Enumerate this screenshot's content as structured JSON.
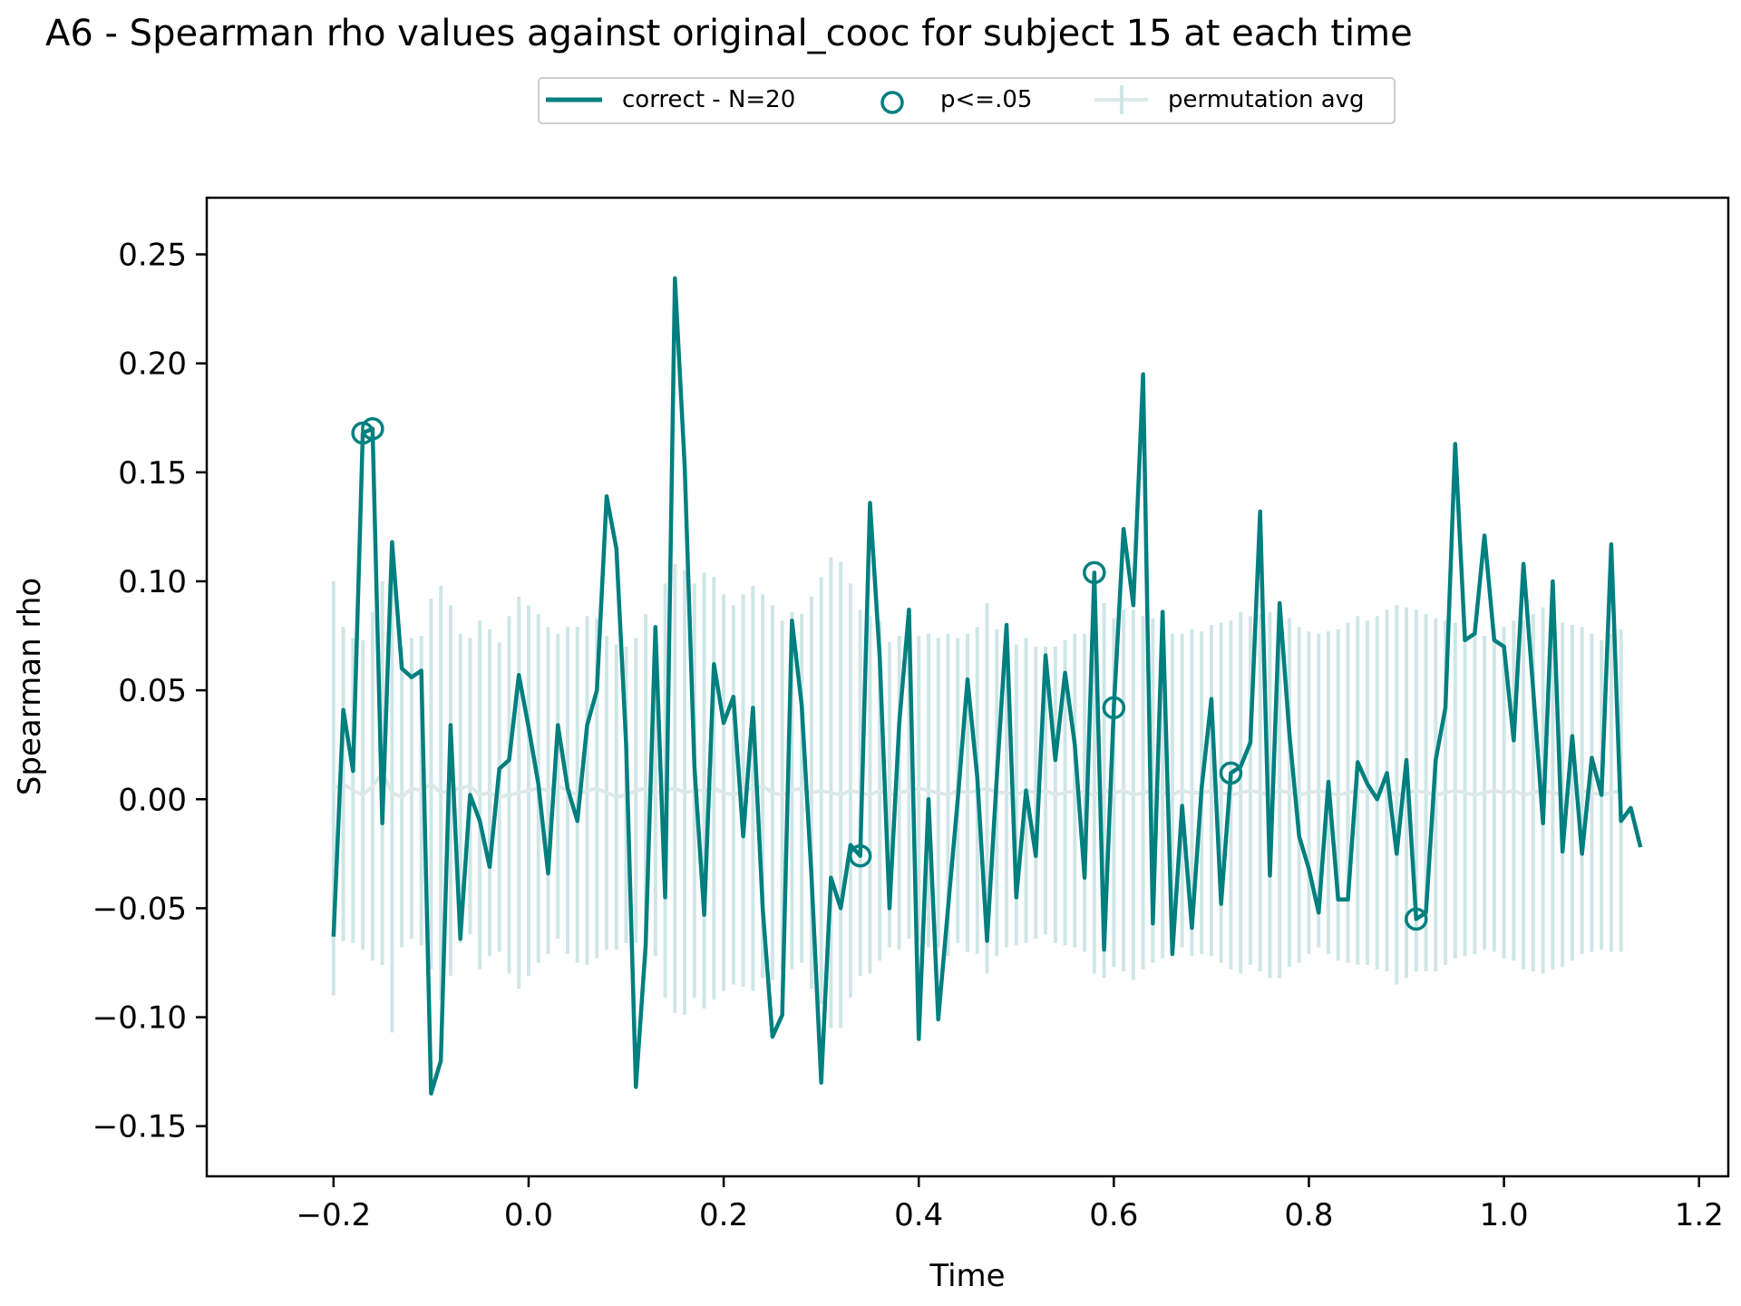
{
  "chart_data": {
    "type": "line",
    "title": "A6 - Spearman rho values against original_cooc for subject 15 at each time",
    "xlabel": "Time",
    "ylabel": "Spearman rho",
    "xlim": [
      -0.33,
      1.23
    ],
    "ylim": [
      -0.173,
      0.276
    ],
    "x_ticks": [
      -0.2,
      0.0,
      0.2,
      0.4,
      0.6,
      0.8,
      1.0,
      1.2
    ],
    "x_tick_labels": [
      "−0.2",
      "0.0",
      "0.2",
      "0.4",
      "0.6",
      "0.8",
      "1.0",
      "1.2"
    ],
    "y_ticks": [
      0.25,
      0.2,
      0.15,
      0.1,
      0.05,
      0.0,
      -0.05,
      -0.1,
      -0.15
    ],
    "y_tick_labels": [
      "0.25",
      "0.20",
      "0.15",
      "0.10",
      "0.05",
      "0.00",
      "−0.05",
      "−0.10",
      "−0.15"
    ],
    "grid": false,
    "legend": {
      "placement": "top-center",
      "entries": [
        {
          "label": "correct - N=20",
          "kind": "line"
        },
        {
          "label": "p<=.05",
          "kind": "marker"
        },
        {
          "label": "permutation avg",
          "kind": "errorbar"
        }
      ]
    },
    "colors": {
      "series": "#007f7f",
      "permutation": "#cfe6e6",
      "permutation_mean": "#dde9e9"
    },
    "series": [
      {
        "name": "correct - N=20",
        "x_start": -0.2,
        "x_step": 0.01,
        "values": [
          -0.063,
          0.041,
          0.013,
          0.168,
          0.17,
          -0.011,
          0.118,
          0.06,
          0.056,
          0.059,
          -0.135,
          -0.12,
          0.034,
          -0.064,
          0.002,
          -0.01,
          -0.031,
          0.014,
          0.018,
          0.057,
          0.033,
          0.007,
          -0.034,
          0.034,
          0.005,
          -0.01,
          0.034,
          0.05,
          0.139,
          0.115,
          0.025,
          -0.132,
          -0.067,
          0.079,
          -0.045,
          0.239,
          0.153,
          0.015,
          -0.053,
          0.062,
          0.035,
          0.047,
          -0.017,
          0.042,
          -0.05,
          -0.109,
          -0.099,
          0.082,
          0.043,
          -0.035,
          -0.13,
          -0.036,
          -0.05,
          -0.021,
          -0.026,
          0.136,
          0.065,
          -0.05,
          0.035,
          0.087,
          -0.11,
          0.0,
          -0.101,
          -0.05,
          0.0,
          0.055,
          0.01,
          -0.065,
          0.01,
          0.08,
          -0.045,
          0.004,
          -0.026,
          0.066,
          0.018,
          0.058,
          0.025,
          -0.036,
          0.104,
          -0.069,
          0.042,
          0.124,
          0.089,
          0.195,
          -0.057,
          0.086,
          -0.071,
          -0.003,
          -0.059,
          0.005,
          0.046,
          -0.048,
          0.012,
          0.015,
          0.026,
          0.132,
          -0.035,
          0.09,
          0.03,
          -0.017,
          -0.032,
          -0.052,
          0.008,
          -0.046,
          -0.046,
          0.017,
          0.007,
          0.0,
          0.012,
          -0.025,
          0.018,
          -0.055,
          -0.052,
          0.018,
          0.042,
          0.163,
          0.073,
          0.076,
          0.121,
          0.073,
          0.07,
          0.027,
          0.108,
          0.05,
          -0.011,
          0.1,
          -0.024,
          0.029,
          -0.025,
          0.019,
          0.002,
          0.117,
          -0.01,
          -0.004,
          -0.022
        ]
      }
    ],
    "significant_x": [
      -0.17,
      -0.16,
      0.34,
      0.58,
      0.6,
      0.72,
      0.91
    ],
    "permutation": {
      "name": "permutation avg",
      "x_start": -0.2,
      "x_step": 0.01,
      "mean": [
        0.005,
        0.007,
        0.004,
        0.002,
        0.006,
        0.012,
        0.003,
        0.001,
        0.005,
        0.004,
        0.007,
        0.003,
        0.004,
        0.005,
        0.006,
        0.002,
        0.003,
        0.001,
        0.002,
        0.003,
        0.004,
        0.005,
        0.004,
        0.006,
        0.004,
        0.002,
        0.004,
        0.005,
        0.003,
        0.001,
        0.002,
        0.004,
        0.005,
        0.003,
        0.004,
        0.005,
        0.003,
        0.004,
        0.004,
        0.005,
        0.003,
        0.002,
        0.004,
        0.005,
        0.006,
        0.003,
        0.002,
        0.004,
        0.005,
        0.003,
        0.004,
        0.003,
        0.002,
        0.004,
        0.003,
        0.002,
        0.004,
        0.002,
        0.003,
        0.004,
        0.005,
        0.004,
        0.003,
        0.002,
        0.004,
        0.003,
        0.004,
        0.005,
        0.003,
        0.003,
        0.002,
        0.004,
        0.003,
        0.004,
        0.002,
        0.003,
        0.004,
        0.003,
        0.002,
        0.004,
        0.003,
        0.004,
        0.002,
        0.003,
        0.004,
        0.003,
        0.002,
        0.004,
        0.003,
        0.003,
        0.004,
        0.003,
        0.002,
        0.003,
        0.004,
        0.003,
        0.002,
        0.004,
        0.003,
        0.002,
        0.003,
        0.004,
        0.003,
        0.002,
        0.003,
        0.004,
        0.003,
        0.003,
        0.004,
        0.002,
        0.003,
        0.004,
        0.003,
        0.002,
        0.003,
        0.004,
        0.003,
        0.002,
        0.003,
        0.004,
        0.003,
        0.004,
        0.002,
        0.003,
        0.004,
        0.003,
        0.002,
        0.003,
        0.004,
        0.003,
        0.002,
        0.003,
        0.004
      ],
      "err": [
        0.095,
        0.072,
        0.07,
        0.071,
        0.08,
        0.088,
        0.11,
        0.069,
        0.069,
        0.071,
        0.085,
        0.095,
        0.085,
        0.071,
        0.068,
        0.08,
        0.075,
        0.071,
        0.082,
        0.09,
        0.085,
        0.08,
        0.075,
        0.07,
        0.075,
        0.077,
        0.08,
        0.078,
        0.072,
        0.07,
        0.068,
        0.07,
        0.08,
        0.075,
        0.095,
        0.103,
        0.102,
        0.095,
        0.1,
        0.097,
        0.091,
        0.087,
        0.09,
        0.093,
        0.088,
        0.086,
        0.08,
        0.082,
        0.08,
        0.09,
        0.098,
        0.108,
        0.107,
        0.095,
        0.084,
        0.082,
        0.078,
        0.07,
        0.072,
        0.068,
        0.07,
        0.072,
        0.071,
        0.074,
        0.07,
        0.073,
        0.075,
        0.085,
        0.075,
        0.071,
        0.069,
        0.07,
        0.067,
        0.066,
        0.068,
        0.07,
        0.072,
        0.073,
        0.082,
        0.086,
        0.08,
        0.083,
        0.085,
        0.081,
        0.079,
        0.076,
        0.074,
        0.072,
        0.075,
        0.074,
        0.076,
        0.078,
        0.08,
        0.083,
        0.08,
        0.082,
        0.084,
        0.086,
        0.08,
        0.077,
        0.074,
        0.072,
        0.074,
        0.076,
        0.078,
        0.08,
        0.079,
        0.081,
        0.083,
        0.087,
        0.085,
        0.083,
        0.082,
        0.081,
        0.079,
        0.077,
        0.075,
        0.073,
        0.072,
        0.074,
        0.076,
        0.078,
        0.08,
        0.082,
        0.084,
        0.081,
        0.079,
        0.077,
        0.075,
        0.073,
        0.071,
        0.073,
        0.074
      ]
    }
  }
}
